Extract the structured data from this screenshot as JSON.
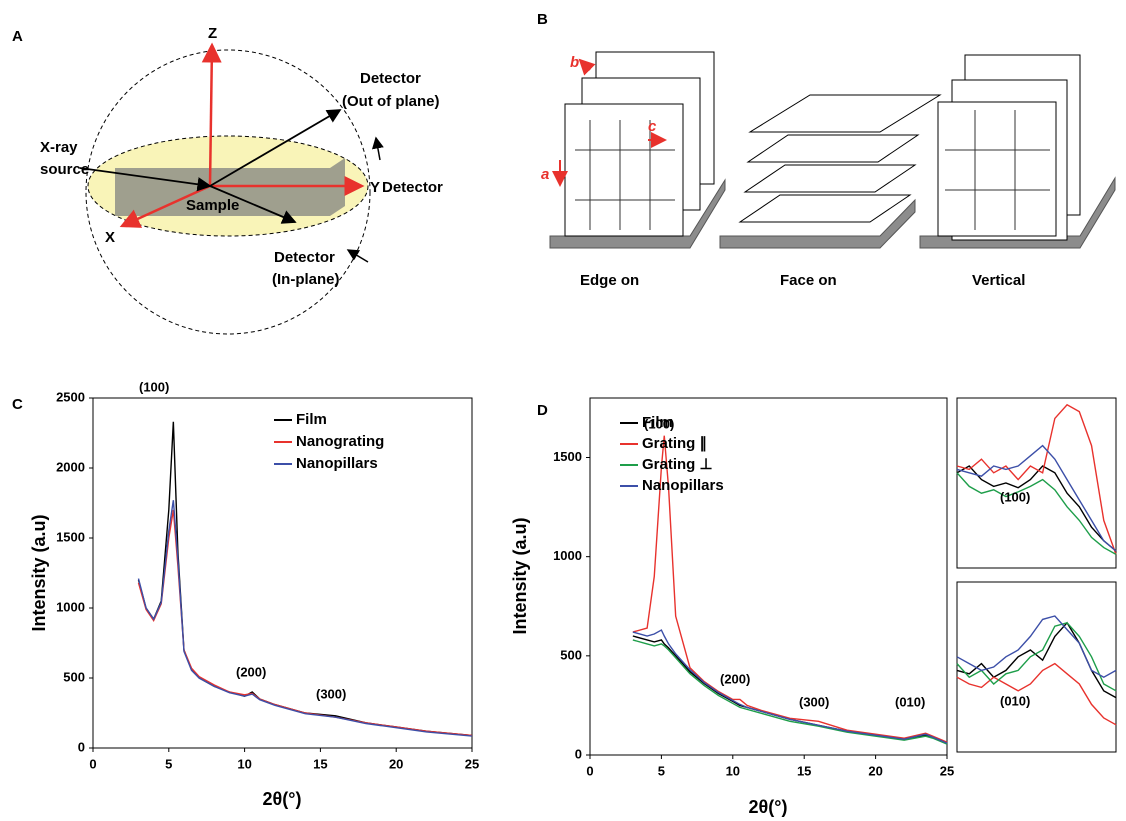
{
  "panels": {
    "A": {
      "label": "A",
      "z": "Z",
      "y": "Y",
      "x": "X",
      "detector_out": [
        "Detector",
        "(Out of plane)"
      ],
      "xray": [
        "X-ray",
        "source"
      ],
      "sample": "Sample",
      "detector": "Detector",
      "detector_in": [
        "Detector",
        "(In-plane)"
      ]
    },
    "B": {
      "label": "B",
      "b": "b",
      "c": "c",
      "a": "a",
      "captions": [
        "Edge on",
        "Face on",
        "Vertical"
      ]
    }
  },
  "chart_data": [
    {
      "type": "line",
      "panel_label": "C",
      "xlabel": "2θ(°)",
      "ylabel": "Intensity (a.u)",
      "xlim": [
        0,
        25
      ],
      "ylim": [
        0,
        2500
      ],
      "xticks": [
        0,
        5,
        10,
        15,
        20,
        25
      ],
      "yticks": [
        0,
        500,
        1000,
        1500,
        2000,
        2500
      ],
      "annotations": [
        "(100)",
        "(200)",
        "(300)"
      ],
      "x": [
        3,
        3.5,
        4,
        4.5,
        5,
        5.3,
        5.6,
        6,
        6.5,
        7,
        8,
        9,
        10,
        10.5,
        11,
        12,
        14,
        16,
        18,
        20,
        22,
        25
      ],
      "series": [
        {
          "name": "Film",
          "color": "#000000",
          "values": [
            1200,
            1000,
            920,
            1050,
            1700,
            2330,
            1400,
            700,
            560,
            500,
            440,
            400,
            370,
            400,
            350,
            310,
            250,
            230,
            180,
            150,
            120,
            90
          ]
        },
        {
          "name": "Nanograting",
          "color": "#e8322d",
          "values": [
            1180,
            990,
            910,
            1030,
            1500,
            1700,
            1300,
            700,
            570,
            510,
            450,
            400,
            380,
            390,
            350,
            310,
            250,
            220,
            180,
            150,
            120,
            90
          ]
        },
        {
          "name": "Nanopillars",
          "color": "#3c4fa8",
          "values": [
            1210,
            1000,
            920,
            1040,
            1550,
            1770,
            1350,
            690,
            555,
            500,
            440,
            395,
            370,
            385,
            345,
            305,
            245,
            220,
            175,
            145,
            115,
            85
          ]
        }
      ]
    },
    {
      "type": "line",
      "panel_label": "D",
      "xlabel": "2θ(°)",
      "ylabel": "Intensity (a.u)",
      "xlim": [
        0,
        25
      ],
      "ylim": [
        0,
        1800
      ],
      "xticks": [
        0,
        5,
        10,
        15,
        20,
        25
      ],
      "yticks": [
        0,
        500,
        1000,
        1500
      ],
      "annotations": [
        "(100)",
        "(200)",
        "(300)",
        "(010)"
      ],
      "x": [
        3,
        4,
        4.5,
        5,
        5.2,
        5.5,
        6,
        7,
        8,
        9,
        10,
        10.5,
        11,
        12,
        14,
        16,
        18,
        20,
        22,
        23.5,
        24,
        25
      ],
      "series": [
        {
          "name": "Film",
          "color": "#000000",
          "values": [
            600,
            580,
            570,
            580,
            560,
            540,
            500,
            420,
            360,
            310,
            270,
            250,
            240,
            220,
            180,
            150,
            120,
            100,
            80,
            100,
            90,
            60
          ]
        },
        {
          "name": "Grating ∥",
          "color": "#e8322d",
          "values": [
            620,
            640,
            900,
            1450,
            1610,
            1350,
            700,
            440,
            370,
            320,
            280,
            280,
            250,
            225,
            185,
            170,
            125,
            105,
            85,
            110,
            95,
            65
          ]
        },
        {
          "name": "Grating ⊥",
          "color": "#1e9e4a",
          "values": [
            580,
            560,
            550,
            560,
            550,
            530,
            490,
            410,
            350,
            300,
            260,
            240,
            230,
            210,
            170,
            145,
            115,
            95,
            75,
            95,
            85,
            55
          ]
        },
        {
          "name": "Nanopillars",
          "color": "#3c4fa8",
          "values": [
            620,
            600,
            610,
            630,
            600,
            560,
            510,
            430,
            365,
            315,
            275,
            255,
            240,
            220,
            180,
            150,
            120,
            100,
            80,
            105,
            90,
            60
          ]
        }
      ]
    },
    {
      "type": "inset",
      "annotations": [
        "(100)"
      ],
      "series": [
        {
          "color": "#000000",
          "values": [
            140,
            150,
            130,
            120,
            125,
            118,
            130,
            150,
            140,
            110,
            90,
            60,
            40,
            25
          ]
        },
        {
          "color": "#e8322d",
          "values": [
            150,
            145,
            160,
            140,
            150,
            130,
            150,
            140,
            220,
            240,
            230,
            180,
            70,
            20
          ]
        },
        {
          "color": "#1e9e4a",
          "values": [
            140,
            120,
            110,
            115,
            105,
            112,
            120,
            130,
            115,
            90,
            70,
            45,
            30,
            20
          ]
        },
        {
          "color": "#3c4fa8",
          "values": [
            145,
            140,
            135,
            150,
            145,
            150,
            165,
            180,
            160,
            130,
            100,
            70,
            40,
            25
          ]
        }
      ]
    },
    {
      "type": "inset",
      "annotations": [
        "(010)"
      ],
      "series": [
        {
          "color": "#000000",
          "values": [
            120,
            115,
            130,
            110,
            120,
            140,
            150,
            135,
            170,
            190,
            160,
            120,
            90,
            80
          ]
        },
        {
          "color": "#e8322d",
          "values": [
            110,
            100,
            95,
            110,
            100,
            90,
            100,
            120,
            130,
            115,
            100,
            70,
            50,
            40
          ]
        },
        {
          "color": "#1e9e4a",
          "values": [
            130,
            110,
            120,
            100,
            115,
            120,
            140,
            150,
            185,
            190,
            170,
            140,
            100,
            90
          ]
        },
        {
          "color": "#3c4fa8",
          "values": [
            140,
            130,
            120,
            125,
            140,
            150,
            170,
            195,
            200,
            180,
            160,
            120,
            110,
            120
          ]
        }
      ]
    }
  ]
}
